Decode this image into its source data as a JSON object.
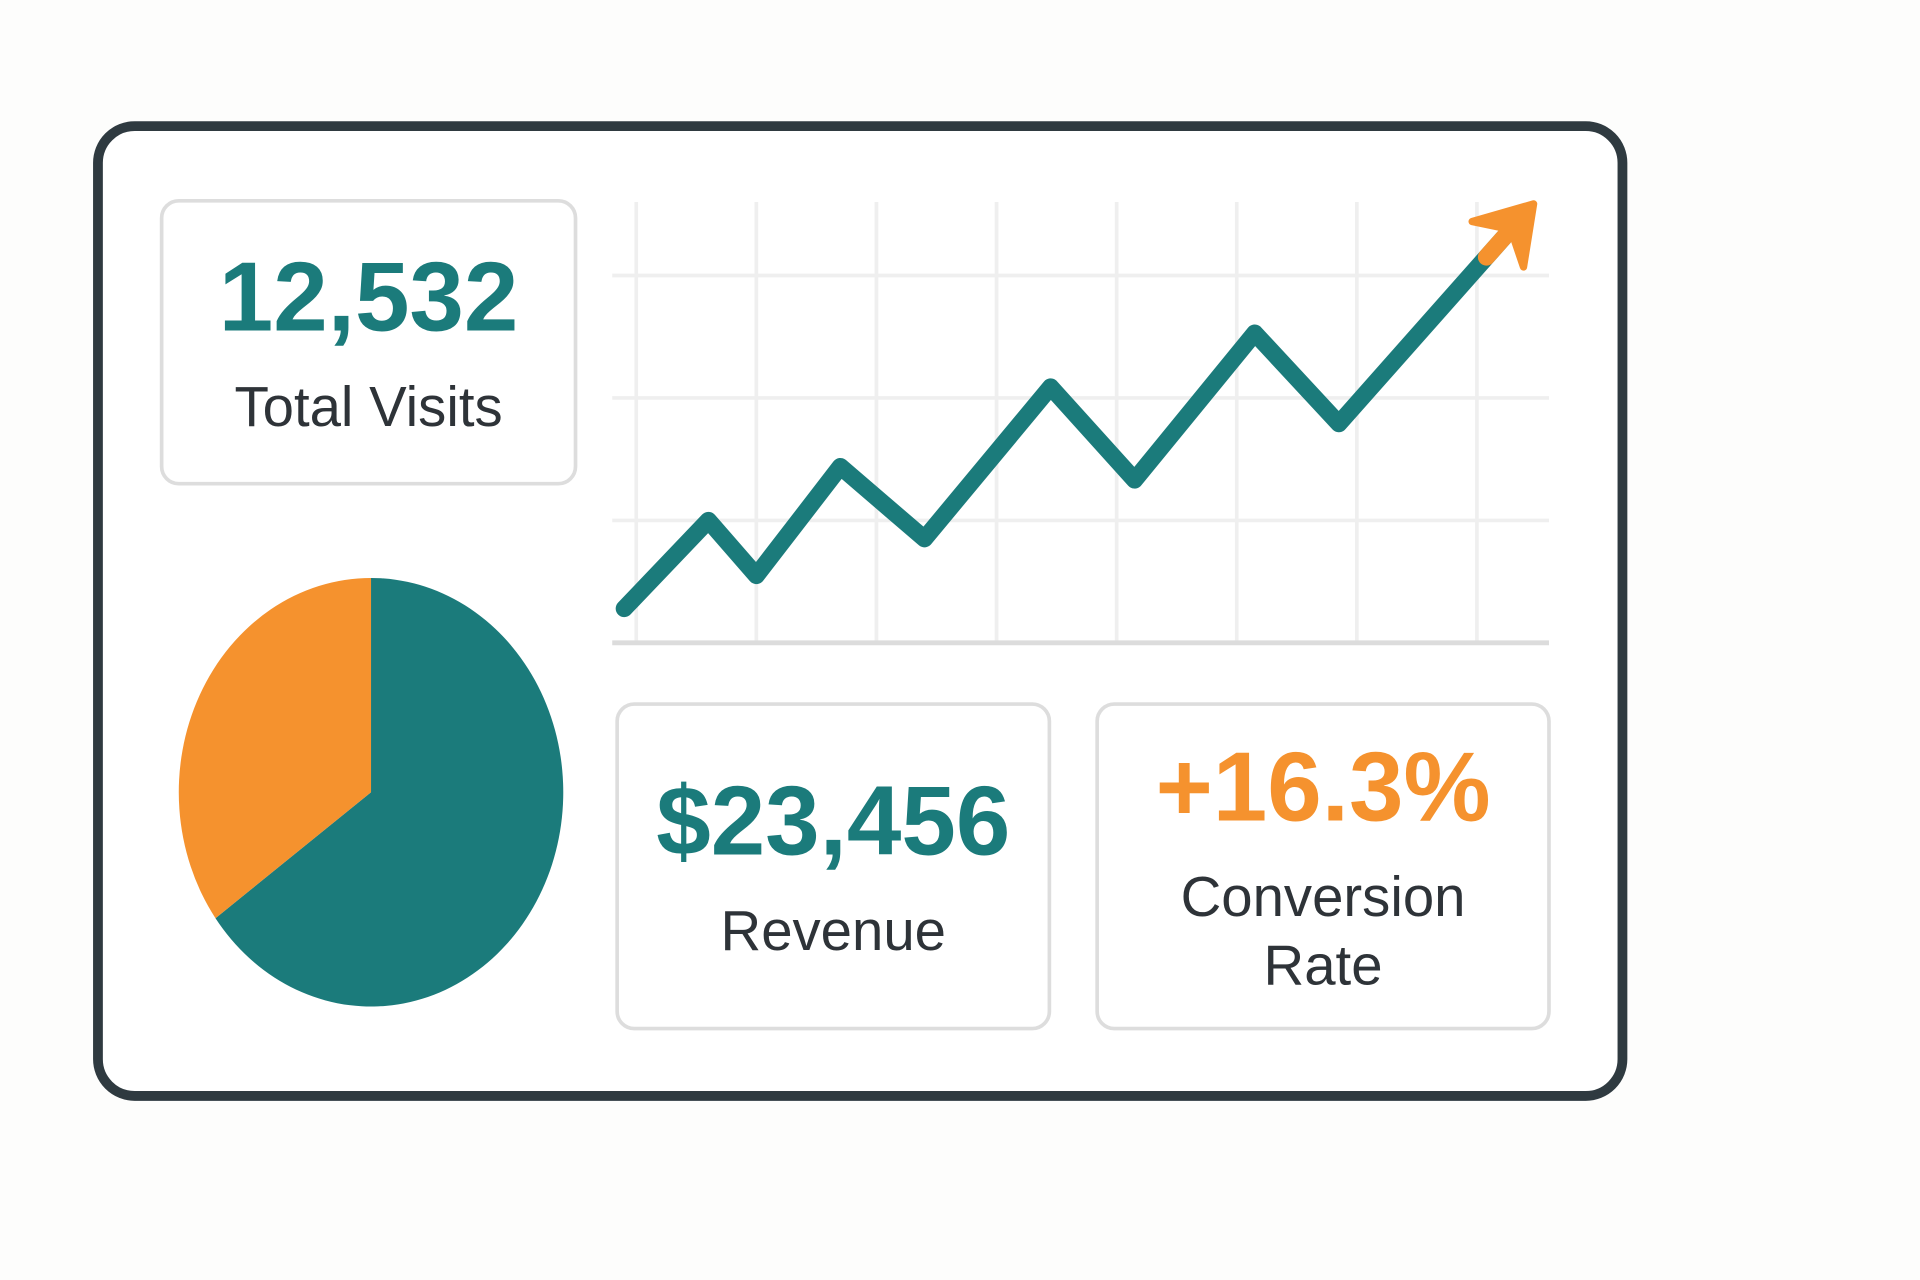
{
  "dashboard": {
    "cards": [
      {
        "value": "12,532",
        "label": "Total Visits",
        "color": "#1b7b7b"
      },
      {
        "value": "$23,456",
        "label": "Revenue",
        "color": "#1b7b7b"
      },
      {
        "value": "+16.3%",
        "label": "Conversion Rate",
        "color": "#f5922e"
      }
    ]
  },
  "chart_data": [
    {
      "type": "line",
      "x": [
        -0.1,
        0.6,
        1.0,
        1.7,
        2.4,
        3.45,
        4.15,
        5.15,
        5.85,
        7.35
      ],
      "values": [
        2.8,
        10.0,
        5.5,
        14.4,
        8.5,
        20.9,
        13.3,
        25.3,
        17.9,
        34.5
      ],
      "color": "#1b7b7b",
      "arrow_color": "#f5922e",
      "xlim": [
        -0.2,
        7.6
      ],
      "ylim": [
        0,
        36
      ],
      "xticks": [
        0,
        1,
        2,
        3,
        4,
        5,
        6,
        7
      ],
      "yticks": [
        0,
        10,
        20,
        30
      ],
      "grid": true
    },
    {
      "type": "pie",
      "values": [
        65,
        35
      ],
      "colors": [
        "#1b7b7b",
        "#f5922e"
      ]
    }
  ]
}
